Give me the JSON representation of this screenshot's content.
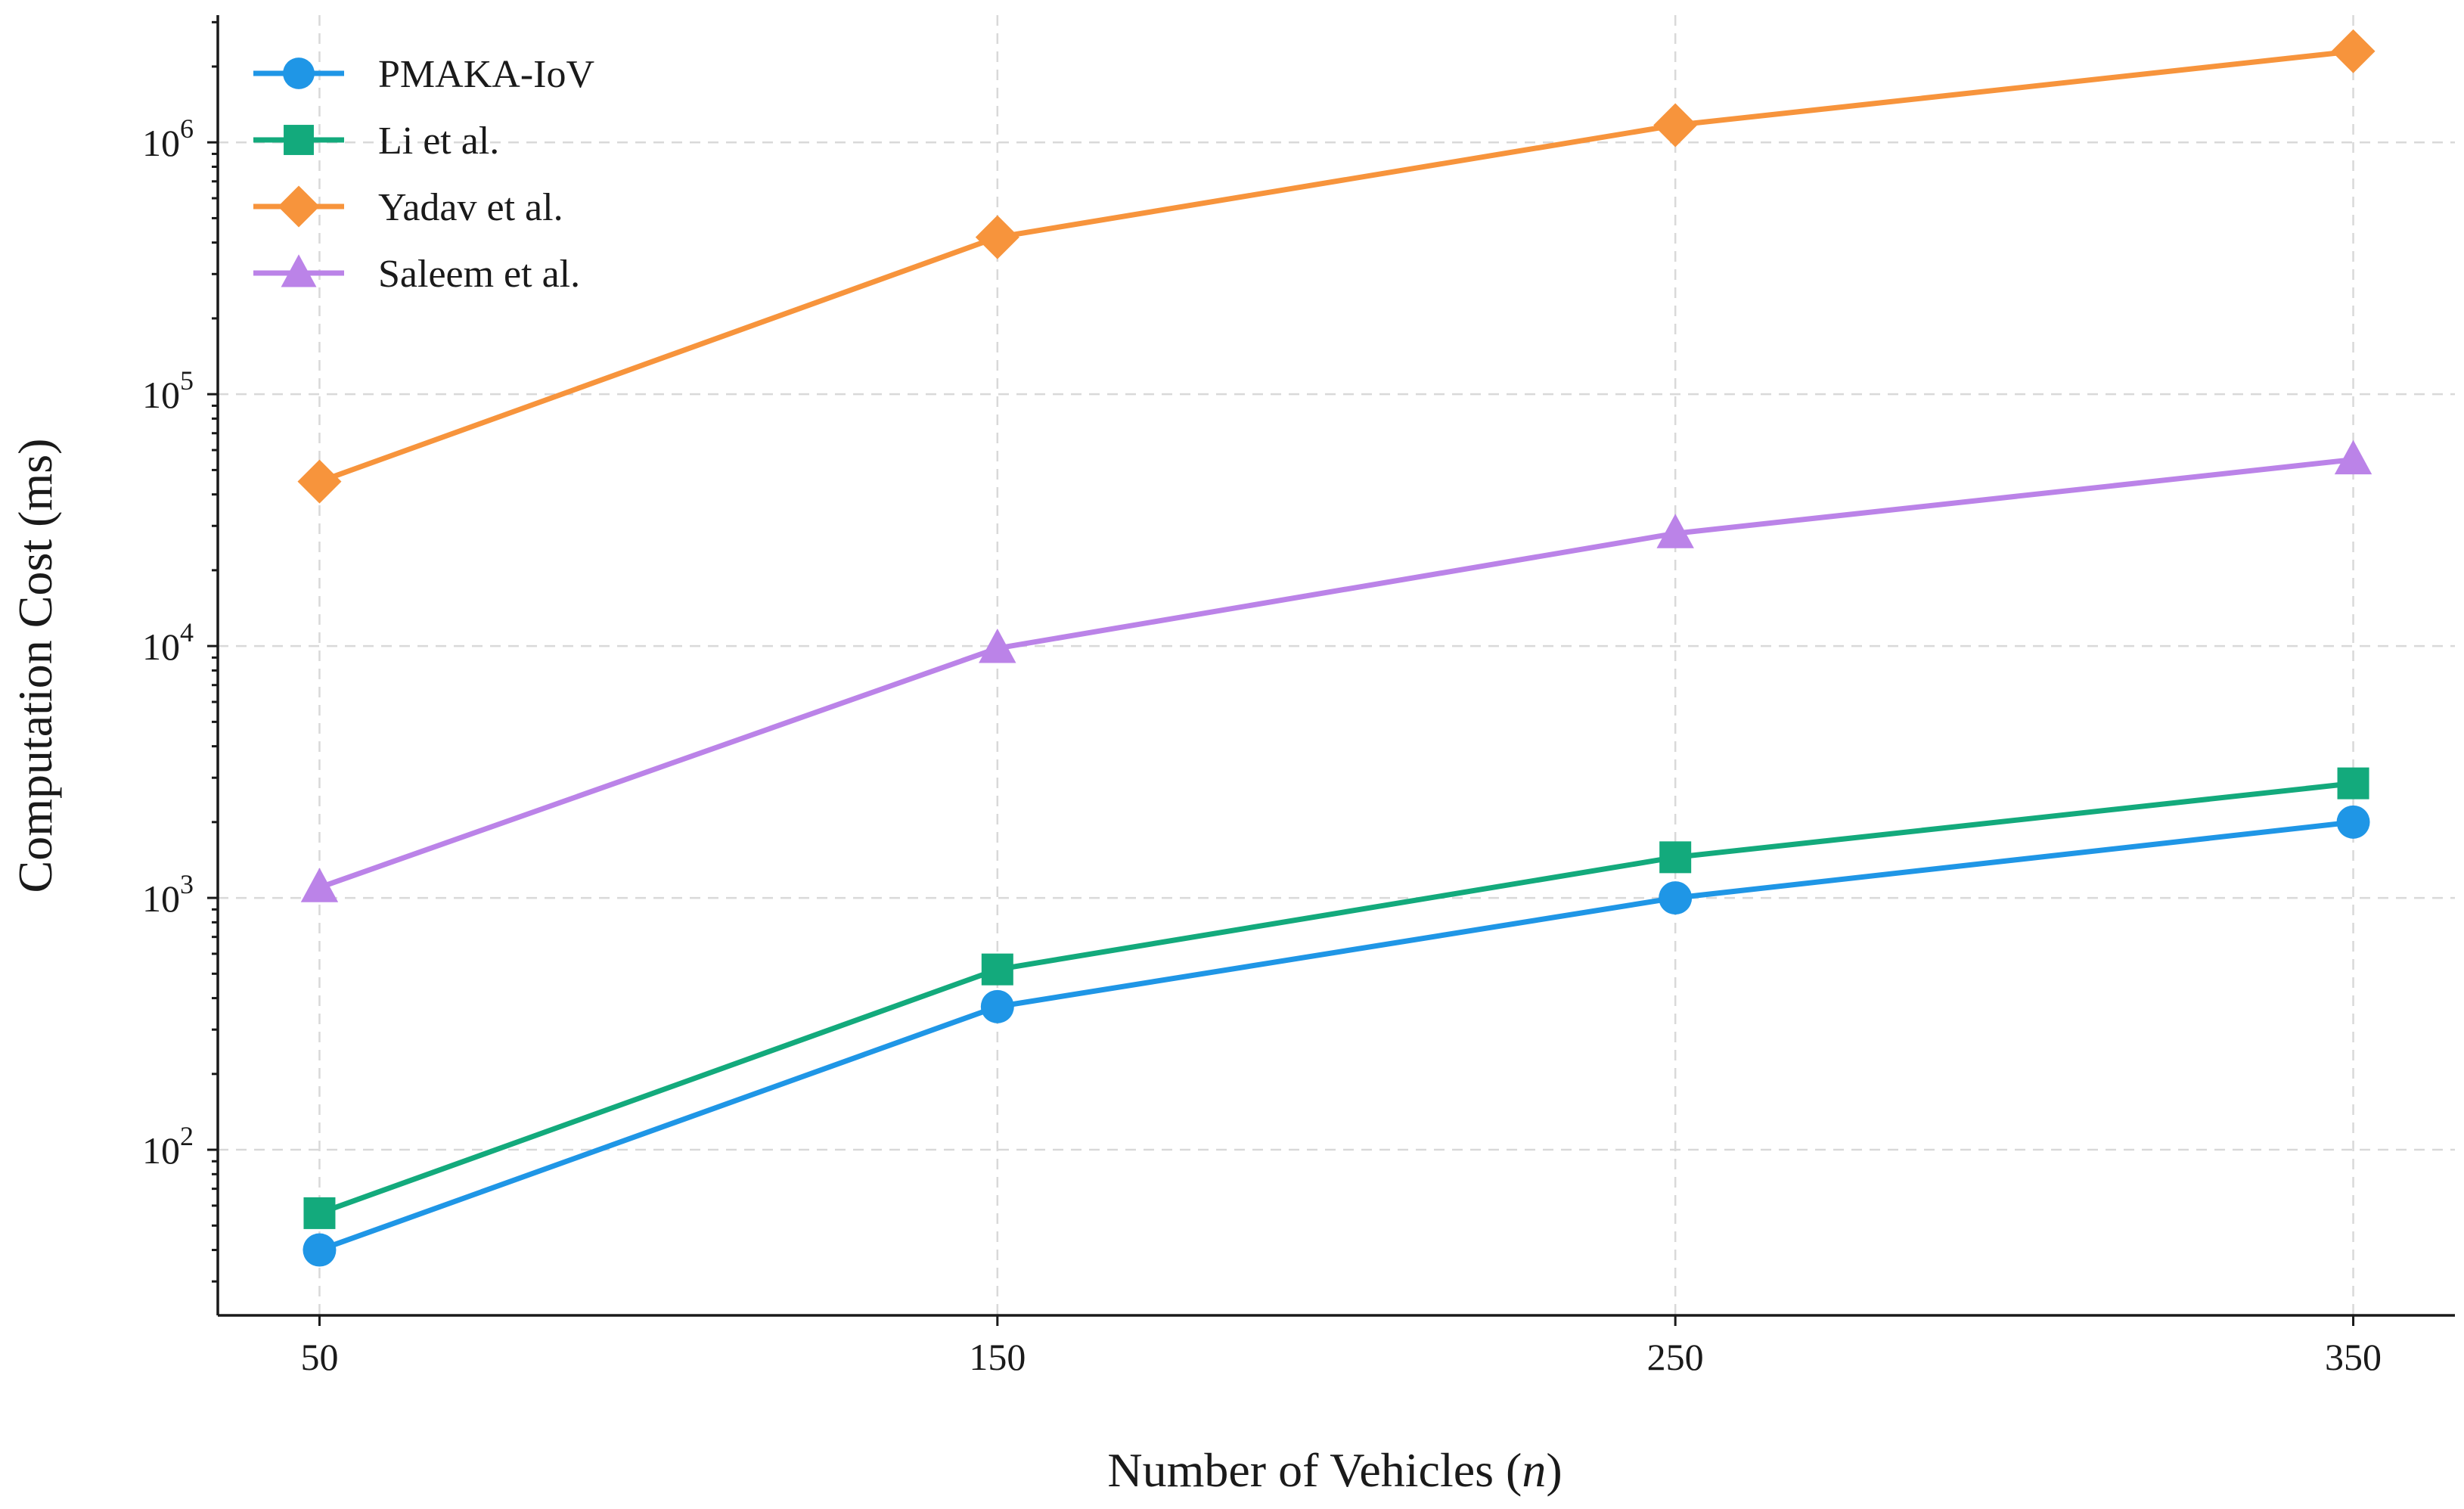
{
  "chart_data": {
    "type": "line",
    "title": "",
    "xlabel": "Number of Vehicles",
    "xlabel_var": "n",
    "ylabel": "Computation Cost (ms)",
    "yscale": "log",
    "ylim": [
      22,
      3200000
    ],
    "xlim": [
      35,
      365
    ],
    "grid": true,
    "legend_position": "top-left",
    "x": [
      50,
      150,
      250,
      350
    ],
    "x_tick_labels": [
      "50",
      "150",
      "250",
      "350"
    ],
    "y_ticks": [
      {
        "value": 100,
        "base": "10",
        "exp": "2"
      },
      {
        "value": 1000,
        "base": "10",
        "exp": "3"
      },
      {
        "value": 10000,
        "base": "10",
        "exp": "4"
      },
      {
        "value": 100000,
        "base": "10",
        "exp": "5"
      },
      {
        "value": 1000000,
        "base": "10",
        "exp": "6"
      }
    ],
    "series": [
      {
        "name": "PMAKA-IoV",
        "color": "#1f96e6",
        "marker": "circle",
        "values": [
          40,
          370,
          1000,
          2000
        ]
      },
      {
        "name": "Li et al.",
        "color": "#13aa7c",
        "marker": "square",
        "values": [
          56,
          520,
          1450,
          2850
        ]
      },
      {
        "name": "Yadav et al.",
        "color": "#f7943c",
        "marker": "diamond",
        "values": [
          45000,
          420000,
          1170000,
          2300000
        ]
      },
      {
        "name": "Saleem et al.",
        "color": "#bb83e8",
        "marker": "triangle",
        "values": [
          1100,
          9800,
          28000,
          55000
        ]
      }
    ]
  }
}
